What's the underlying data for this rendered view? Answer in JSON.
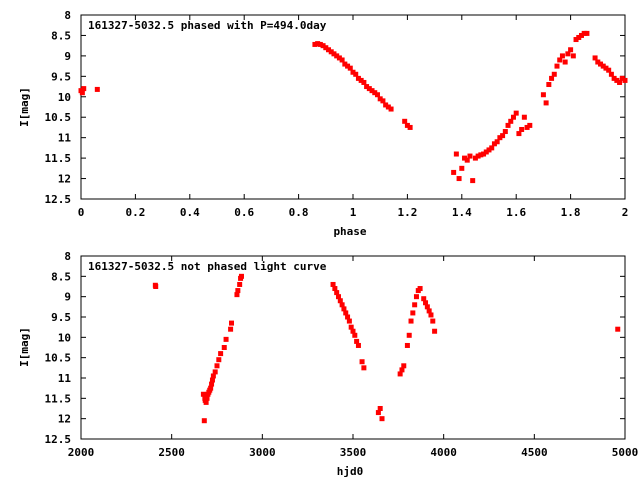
{
  "chart_data": [
    {
      "type": "scatter",
      "title": "161327-5032.5 phased with P=494.0day",
      "xlabel": "phase",
      "ylabel": "I[mag]",
      "xlim": [
        0,
        2
      ],
      "ylim": [
        12.5,
        8
      ],
      "y_inverted": true,
      "grid": false,
      "marker_color": "#ff0000",
      "xticks": [
        "0",
        "0.2",
        "0.4",
        "0.6",
        "0.8",
        "1",
        "1.2",
        "1.4",
        "1.6",
        "1.8",
        "2"
      ],
      "yticks": [
        "8",
        "8.5",
        "9",
        "9.5",
        "10",
        "10.5",
        "11",
        "11.5",
        "12",
        "12.5"
      ],
      "series": [
        {
          "x": [
            0.0,
            0.005,
            0.01,
            0.06,
            0.86,
            0.87,
            0.88,
            0.89,
            0.9,
            0.91,
            0.92,
            0.93,
            0.94,
            0.95,
            0.96,
            0.97,
            0.98,
            0.99,
            1.0,
            1.01,
            1.02,
            1.03,
            1.04,
            1.05,
            1.06,
            1.07,
            1.08,
            1.09,
            1.1,
            1.11,
            1.12,
            1.13,
            1.14,
            1.19,
            1.2,
            1.21,
            1.37,
            1.38,
            1.39,
            1.4,
            1.41,
            1.42,
            1.43,
            1.44,
            1.45,
            1.46,
            1.47,
            1.48,
            1.49,
            1.5,
            1.51,
            1.52,
            1.53,
            1.54,
            1.55,
            1.56,
            1.57,
            1.58,
            1.59,
            1.6,
            1.61,
            1.62,
            1.63,
            1.64,
            1.65,
            1.7,
            1.71,
            1.72,
            1.73,
            1.74,
            1.75,
            1.76,
            1.77,
            1.78,
            1.79,
            1.8,
            1.81,
            1.82,
            1.83,
            1.84,
            1.85,
            1.86,
            1.89,
            1.9,
            1.91,
            1.92,
            1.93,
            1.94,
            1.95,
            1.96,
            1.97,
            1.98,
            1.99,
            2.0
          ],
          "y": [
            9.85,
            9.9,
            9.8,
            9.82,
            8.72,
            8.7,
            8.72,
            8.75,
            8.8,
            8.85,
            8.9,
            8.95,
            9.0,
            9.05,
            9.1,
            9.2,
            9.25,
            9.3,
            9.4,
            9.45,
            9.55,
            9.6,
            9.65,
            9.75,
            9.8,
            9.85,
            9.9,
            9.95,
            10.05,
            10.1,
            10.2,
            10.25,
            10.3,
            10.6,
            10.7,
            10.75,
            11.85,
            11.4,
            12.0,
            11.75,
            11.5,
            11.55,
            11.45,
            12.05,
            11.5,
            11.45,
            11.42,
            11.4,
            11.35,
            11.3,
            11.25,
            11.15,
            11.1,
            11.0,
            10.95,
            10.85,
            10.7,
            10.6,
            10.5,
            10.4,
            10.9,
            10.8,
            10.5,
            10.75,
            10.7,
            9.95,
            10.15,
            9.7,
            9.55,
            9.45,
            9.25,
            9.1,
            9.0,
            9.15,
            8.95,
            8.85,
            9.0,
            8.6,
            8.55,
            8.5,
            8.45,
            8.45,
            9.05,
            9.15,
            9.2,
            9.25,
            9.3,
            9.35,
            9.45,
            9.55,
            9.6,
            9.65,
            9.55,
            9.6
          ]
        }
      ]
    },
    {
      "type": "scatter",
      "title": "161327-5032.5 not phased light curve",
      "xlabel": "hjd0",
      "ylabel": "I[mag]",
      "xlim": [
        2000,
        5000
      ],
      "ylim": [
        12.5,
        8
      ],
      "y_inverted": true,
      "grid": false,
      "marker_color": "#ff0000",
      "xticks": [
        "2000",
        "2500",
        "3000",
        "3500",
        "4000",
        "4500",
        "5000"
      ],
      "yticks": [
        "8",
        "8.5",
        "9",
        "9.5",
        "10",
        "10.5",
        "11",
        "11.5",
        "12",
        "12.5"
      ],
      "series": [
        {
          "x": [
            2410,
            2412,
            2675,
            2680,
            2683,
            2685,
            2688,
            2690,
            2695,
            2700,
            2705,
            2710,
            2715,
            2720,
            2725,
            2730,
            2740,
            2750,
            2760,
            2770,
            2790,
            2800,
            2825,
            2830,
            2860,
            2865,
            2875,
            2880,
            2885,
            3390,
            3400,
            3410,
            3420,
            3430,
            3440,
            3450,
            3460,
            3470,
            3480,
            3490,
            3500,
            3510,
            3520,
            3530,
            3550,
            3560,
            3640,
            3650,
            3660,
            3760,
            3770,
            3780,
            3800,
            3810,
            3820,
            3830,
            3840,
            3850,
            3860,
            3870,
            3890,
            3900,
            3910,
            3920,
            3930,
            3940,
            3950,
            4960
          ],
          "y": [
            8.72,
            8.75,
            11.4,
            12.05,
            11.5,
            11.55,
            11.45,
            11.6,
            11.5,
            11.4,
            11.35,
            11.3,
            11.25,
            11.15,
            11.05,
            10.95,
            10.85,
            10.7,
            10.55,
            10.4,
            10.25,
            10.05,
            9.8,
            9.65,
            8.95,
            8.85,
            8.7,
            8.55,
            8.5,
            8.7,
            8.8,
            8.9,
            9.0,
            9.1,
            9.2,
            9.3,
            9.4,
            9.5,
            9.6,
            9.75,
            9.85,
            9.95,
            10.1,
            10.2,
            10.6,
            10.75,
            11.85,
            11.75,
            12.0,
            10.9,
            10.8,
            10.7,
            10.2,
            9.95,
            9.6,
            9.4,
            9.2,
            9.0,
            8.85,
            8.8,
            9.05,
            9.15,
            9.25,
            9.35,
            9.45,
            9.6,
            9.85,
            9.8
          ]
        }
      ]
    }
  ]
}
